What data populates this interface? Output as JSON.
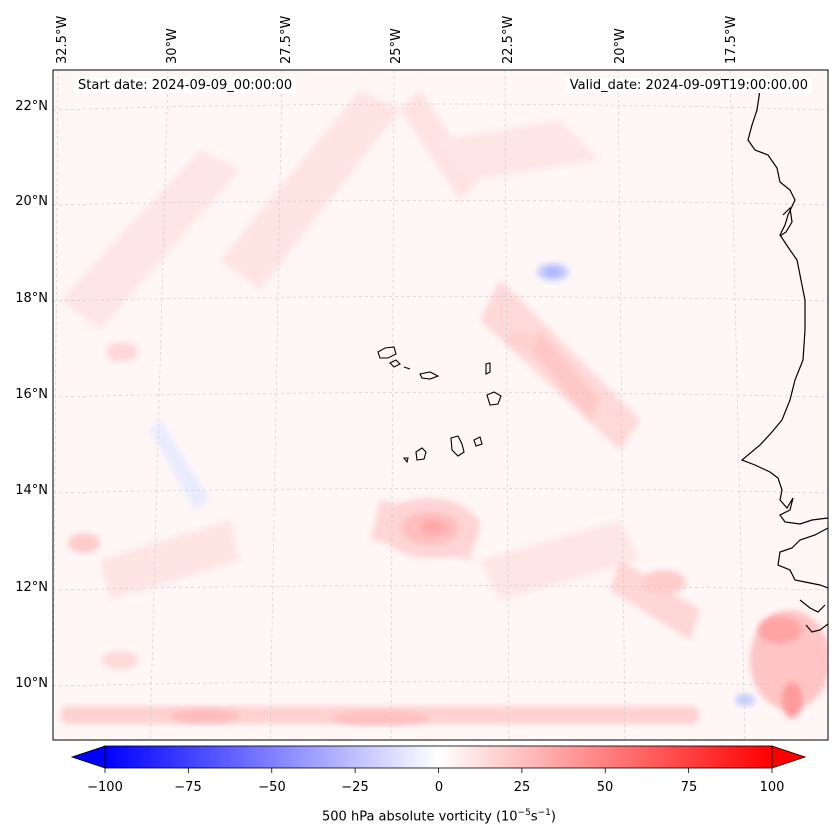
{
  "map": {
    "start_date_text": "Start date: 2024-09-09_00:00:00",
    "valid_date_text": "Valid_date: 2024-09-09T19:00:00.00",
    "lon_labels": [
      "32.5°W",
      "30°W",
      "27.5°W",
      "25°W",
      "22.5°W",
      "20°W",
      "17.5°W"
    ],
    "lat_labels": [
      "22°N",
      "20°N",
      "18°N",
      "16°N",
      "14°N",
      "12°N",
      "10°N"
    ],
    "gridlines": true,
    "colormap": "bwr",
    "colors": {
      "negative": "#0000ff",
      "neutral": "#ffffff",
      "positive": "#ff0000",
      "coastline": "#000000"
    }
  },
  "colorbar": {
    "ticks": [
      "−100",
      "−75",
      "−50",
      "−25",
      "0",
      "25",
      "50",
      "75",
      "100"
    ],
    "range": [
      -100,
      100
    ],
    "label_main": "500 hPa absolute vorticity (10",
    "label_exp1": "−5",
    "label_mid": "s",
    "label_exp2": "−1",
    "label_end": ")"
  }
}
